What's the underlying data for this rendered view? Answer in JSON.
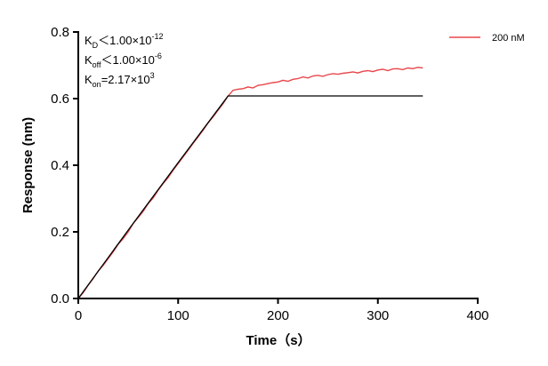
{
  "chart_data": {
    "type": "line",
    "x_label": "Time（s）",
    "y_label": "Response (nm)",
    "xlim": [
      0,
      400
    ],
    "xticks": [
      0,
      100,
      200,
      300,
      400
    ],
    "ylim": [
      0,
      0.8
    ],
    "yticks": [
      {
        "value": 0,
        "label": "0.0"
      },
      0.2,
      0.4,
      0.6,
      0.8
    ],
    "annotations": [
      {
        "symbol": "K",
        "subscript": "D",
        "text": "＜1.00×10",
        "exponent": "-12"
      },
      {
        "symbol": "K",
        "subscript": "off",
        "text": "＜1.00×10",
        "exponent": "-6"
      },
      {
        "symbol": "K",
        "subscript": "on",
        "text": "=2.17×10",
        "exponent": "3"
      }
    ],
    "series": [
      {
        "name": "200 nM",
        "color": "#e8474b",
        "x": [
          0,
          5,
          10,
          15,
          20,
          25,
          30,
          35,
          40,
          45,
          50,
          55,
          60,
          65,
          70,
          75,
          80,
          85,
          90,
          95,
          100,
          105,
          110,
          115,
          120,
          125,
          130,
          135,
          140,
          145,
          150,
          155,
          160,
          165,
          170,
          175,
          180,
          185,
          190,
          195,
          200,
          205,
          210,
          215,
          220,
          225,
          230,
          235,
          240,
          245,
          250,
          255,
          260,
          265,
          270,
          275,
          280,
          285,
          290,
          295,
          300,
          305,
          310,
          315,
          320,
          325,
          330,
          335,
          340,
          345
        ],
        "values": [
          0.0,
          0.018,
          0.04,
          0.06,
          0.083,
          0.1,
          0.12,
          0.14,
          0.163,
          0.18,
          0.2,
          0.225,
          0.243,
          0.262,
          0.285,
          0.302,
          0.325,
          0.345,
          0.363,
          0.385,
          0.405,
          0.425,
          0.445,
          0.466,
          0.485,
          0.505,
          0.527,
          0.545,
          0.565,
          0.585,
          0.608,
          0.625,
          0.628,
          0.63,
          0.635,
          0.632,
          0.64,
          0.642,
          0.645,
          0.648,
          0.65,
          0.655,
          0.652,
          0.658,
          0.66,
          0.665,
          0.662,
          0.668,
          0.67,
          0.667,
          0.672,
          0.675,
          0.673,
          0.676,
          0.678,
          0.68,
          0.677,
          0.682,
          0.684,
          0.681,
          0.686,
          0.688,
          0.684,
          0.689,
          0.69,
          0.687,
          0.692,
          0.69,
          0.694,
          0.692
        ]
      },
      {
        "color": "#000000",
        "x": [
          0,
          50,
          100,
          150,
          345
        ],
        "values": [
          0,
          0.205,
          0.408,
          0.608,
          0.608
        ]
      }
    ]
  }
}
